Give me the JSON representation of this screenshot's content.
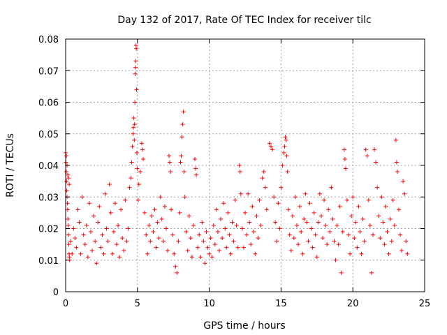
{
  "chart_data": {
    "type": "scatter",
    "title": "Day 132 of 2017, Rate Of TEC Index for receiver tilc",
    "xlabel": "GPS time / hours",
    "ylabel": "ROTI / TECUs",
    "xlim": [
      0,
      25
    ],
    "ylim": [
      0,
      0.08
    ],
    "x_ticks": [
      0,
      5,
      10,
      15,
      20,
      25
    ],
    "x_tick_labels": [
      "0",
      "5",
      "10",
      "15",
      "20",
      "25"
    ],
    "y_ticks": [
      0,
      0.01,
      0.02,
      0.03,
      0.04,
      0.05,
      0.06,
      0.07,
      0.08
    ],
    "y_tick_labels": [
      "0",
      "0.01",
      "0.02",
      "0.03",
      "0.04",
      "0.05",
      "0.06",
      "0.07",
      "0.08"
    ],
    "grid": true,
    "marker": "plus",
    "color": "#ff0000",
    "series": [
      {
        "points": [
          [
            0.0,
            0.044
          ],
          [
            0.02,
            0.041
          ],
          [
            0.04,
            0.038
          ],
          [
            0.06,
            0.035
          ],
          [
            0.08,
            0.032
          ],
          [
            0.1,
            0.03
          ],
          [
            0.12,
            0.028
          ],
          [
            0.14,
            0.026
          ],
          [
            0.16,
            0.023
          ],
          [
            0.18,
            0.021
          ],
          [
            0.2,
            0.018
          ],
          [
            0.22,
            0.015
          ],
          [
            0.24,
            0.012
          ],
          [
            0.26,
            0.011
          ],
          [
            0.28,
            0.01
          ],
          [
            0.05,
            0.043
          ],
          [
            0.1,
            0.04
          ],
          [
            0.15,
            0.037
          ],
          [
            0.2,
            0.036
          ],
          [
            0.25,
            0.034
          ],
          [
            0.35,
            0.016
          ],
          [
            0.45,
            0.012
          ],
          [
            0.55,
            0.02
          ],
          [
            0.65,
            0.017
          ],
          [
            0.75,
            0.014
          ],
          [
            0.85,
            0.026
          ],
          [
            0.95,
            0.022
          ],
          [
            1.05,
            0.012
          ],
          [
            1.15,
            0.03
          ],
          [
            1.25,
            0.018
          ],
          [
            1.35,
            0.015
          ],
          [
            1.45,
            0.021
          ],
          [
            1.55,
            0.011
          ],
          [
            1.65,
            0.028
          ],
          [
            1.75,
            0.019
          ],
          [
            1.85,
            0.013
          ],
          [
            1.95,
            0.024
          ],
          [
            2.05,
            0.016
          ],
          [
            2.15,
            0.009
          ],
          [
            2.25,
            0.022
          ],
          [
            2.35,
            0.027
          ],
          [
            2.45,
            0.014
          ],
          [
            2.55,
            0.018
          ],
          [
            2.65,
            0.012
          ],
          [
            2.75,
            0.031
          ],
          [
            2.85,
            0.02
          ],
          [
            2.95,
            0.016
          ],
          [
            3.05,
            0.034
          ],
          [
            3.15,
            0.025
          ],
          [
            3.25,
            0.012
          ],
          [
            3.35,
            0.019
          ],
          [
            3.45,
            0.028
          ],
          [
            3.55,
            0.015
          ],
          [
            3.65,
            0.021
          ],
          [
            3.75,
            0.011
          ],
          [
            3.85,
            0.026
          ],
          [
            3.95,
            0.017
          ],
          [
            4.05,
            0.013
          ],
          [
            4.15,
            0.029
          ],
          [
            4.25,
            0.016
          ],
          [
            4.35,
            0.02
          ],
          [
            4.45,
            0.033
          ],
          [
            4.55,
            0.036
          ],
          [
            4.6,
            0.041
          ],
          [
            4.65,
            0.046
          ],
          [
            4.7,
            0.05
          ],
          [
            4.72,
            0.052
          ],
          [
            4.75,
            0.055
          ],
          [
            4.78,
            0.048
          ],
          [
            4.8,
            0.053
          ],
          [
            4.82,
            0.06
          ],
          [
            4.84,
            0.069
          ],
          [
            4.86,
            0.071
          ],
          [
            4.88,
            0.073
          ],
          [
            4.9,
            0.078
          ],
          [
            4.92,
            0.077
          ],
          [
            4.94,
            0.064
          ],
          [
            4.96,
            0.044
          ],
          [
            4.98,
            0.039
          ],
          [
            5.05,
            0.029
          ],
          [
            5.1,
            0.034
          ],
          [
            5.2,
            0.038
          ],
          [
            5.3,
            0.047
          ],
          [
            5.35,
            0.045
          ],
          [
            5.4,
            0.042
          ],
          [
            5.5,
            0.025
          ],
          [
            5.6,
            0.018
          ],
          [
            5.7,
            0.012
          ],
          [
            5.8,
            0.021
          ],
          [
            5.9,
            0.016
          ],
          [
            6.0,
            0.024
          ],
          [
            6.1,
            0.019
          ],
          [
            6.2,
            0.026
          ],
          [
            6.3,
            0.014
          ],
          [
            6.4,
            0.022
          ],
          [
            6.5,
            0.017
          ],
          [
            6.6,
            0.03
          ],
          [
            6.7,
            0.023
          ],
          [
            6.8,
            0.016
          ],
          [
            6.9,
            0.027
          ],
          [
            7.0,
            0.02
          ],
          [
            7.1,
            0.013
          ],
          [
            7.2,
            0.043
          ],
          [
            7.25,
            0.041
          ],
          [
            7.3,
            0.038
          ],
          [
            7.35,
            0.026
          ],
          [
            7.45,
            0.018
          ],
          [
            7.55,
            0.012
          ],
          [
            7.65,
            0.008
          ],
          [
            7.75,
            0.006
          ],
          [
            7.85,
            0.016
          ],
          [
            7.95,
            0.025
          ],
          [
            8.0,
            0.041
          ],
          [
            8.05,
            0.043
          ],
          [
            8.1,
            0.049
          ],
          [
            8.15,
            0.053
          ],
          [
            8.2,
            0.057
          ],
          [
            8.25,
            0.038
          ],
          [
            8.3,
            0.03
          ],
          [
            8.4,
            0.019
          ],
          [
            8.5,
            0.013
          ],
          [
            8.6,
            0.024
          ],
          [
            8.7,
            0.017
          ],
          [
            8.8,
            0.011
          ],
          [
            8.9,
            0.021
          ],
          [
            9.0,
            0.042
          ],
          [
            9.05,
            0.039
          ],
          [
            9.1,
            0.037
          ],
          [
            9.2,
            0.014
          ],
          [
            9.3,
            0.018
          ],
          [
            9.4,
            0.011
          ],
          [
            9.5,
            0.022
          ],
          [
            9.6,
            0.016
          ],
          [
            9.7,
            0.009
          ],
          [
            9.8,
            0.019
          ],
          [
            9.9,
            0.014
          ],
          [
            10.0,
            0.012
          ],
          [
            10.1,
            0.017
          ],
          [
            10.2,
            0.011
          ],
          [
            10.3,
            0.021
          ],
          [
            10.4,
            0.015
          ],
          [
            10.5,
            0.026
          ],
          [
            10.6,
            0.019
          ],
          [
            10.7,
            0.013
          ],
          [
            10.8,
            0.023
          ],
          [
            10.9,
            0.017
          ],
          [
            11.0,
            0.028
          ],
          [
            11.1,
            0.02
          ],
          [
            11.2,
            0.014
          ],
          [
            11.3,
            0.025
          ],
          [
            11.4,
            0.018
          ],
          [
            11.5,
            0.012
          ],
          [
            11.6,
            0.022
          ],
          [
            11.7,
            0.016
          ],
          [
            11.8,
            0.029
          ],
          [
            11.9,
            0.021
          ],
          [
            12.0,
            0.014
          ],
          [
            12.1,
            0.04
          ],
          [
            12.15,
            0.038
          ],
          [
            12.2,
            0.031
          ],
          [
            12.3,
            0.02
          ],
          [
            12.4,
            0.014
          ],
          [
            12.5,
            0.025
          ],
          [
            12.6,
            0.018
          ],
          [
            12.7,
            0.031
          ],
          [
            12.8,
            0.022
          ],
          [
            12.9,
            0.015
          ],
          [
            13.0,
            0.027
          ],
          [
            13.1,
            0.019
          ],
          [
            13.2,
            0.012
          ],
          [
            13.3,
            0.024
          ],
          [
            13.4,
            0.017
          ],
          [
            13.5,
            0.029
          ],
          [
            13.6,
            0.021
          ],
          [
            13.7,
            0.036
          ],
          [
            13.8,
            0.038
          ],
          [
            13.9,
            0.033
          ],
          [
            14.0,
            0.026
          ],
          [
            14.2,
            0.047
          ],
          [
            14.3,
            0.046
          ],
          [
            14.4,
            0.045
          ],
          [
            14.5,
            0.03
          ],
          [
            14.6,
            0.022
          ],
          [
            14.7,
            0.016
          ],
          [
            14.8,
            0.028
          ],
          [
            14.9,
            0.02
          ],
          [
            15.0,
            0.033
          ],
          [
            15.1,
            0.04
          ],
          [
            15.2,
            0.044
          ],
          [
            15.25,
            0.046
          ],
          [
            15.3,
            0.049
          ],
          [
            15.35,
            0.048
          ],
          [
            15.4,
            0.043
          ],
          [
            15.45,
            0.038
          ],
          [
            15.5,
            0.026
          ],
          [
            15.6,
            0.018
          ],
          [
            15.7,
            0.013
          ],
          [
            15.8,
            0.024
          ],
          [
            15.9,
            0.017
          ],
          [
            16.0,
            0.03
          ],
          [
            16.1,
            0.021
          ],
          [
            16.2,
            0.015
          ],
          [
            16.3,
            0.027
          ],
          [
            16.4,
            0.019
          ],
          [
            16.5,
            0.012
          ],
          [
            16.6,
            0.023
          ],
          [
            16.7,
            0.031
          ],
          [
            16.8,
            0.022
          ],
          [
            16.9,
            0.016
          ],
          [
            17.0,
            0.028
          ],
          [
            17.1,
            0.02
          ],
          [
            17.2,
            0.014
          ],
          [
            17.3,
            0.025
          ],
          [
            17.4,
            0.018
          ],
          [
            17.5,
            0.011
          ],
          [
            17.6,
            0.022
          ],
          [
            17.7,
            0.031
          ],
          [
            17.8,
            0.024
          ],
          [
            17.9,
            0.017
          ],
          [
            18.0,
            0.029
          ],
          [
            18.1,
            0.021
          ],
          [
            18.2,
            0.015
          ],
          [
            18.3,
            0.026
          ],
          [
            18.4,
            0.019
          ],
          [
            18.5,
            0.033
          ],
          [
            18.6,
            0.023
          ],
          [
            18.7,
            0.016
          ],
          [
            18.8,
            0.01
          ],
          [
            18.9,
            0.021
          ],
          [
            19.0,
            0.015
          ],
          [
            19.1,
            0.027
          ],
          [
            19.2,
            0.006
          ],
          [
            19.3,
            0.019
          ],
          [
            19.4,
            0.045
          ],
          [
            19.45,
            0.042
          ],
          [
            19.5,
            0.039
          ],
          [
            19.6,
            0.029
          ],
          [
            19.7,
            0.018
          ],
          [
            19.8,
            0.012
          ],
          [
            19.9,
            0.024
          ],
          [
            20.0,
            0.03
          ],
          [
            20.1,
            0.017
          ],
          [
            20.2,
            0.022
          ],
          [
            20.3,
            0.014
          ],
          [
            20.4,
            0.027
          ],
          [
            20.5,
            0.019
          ],
          [
            20.6,
            0.012
          ],
          [
            20.7,
            0.023
          ],
          [
            20.8,
            0.016
          ],
          [
            20.9,
            0.045
          ],
          [
            21.0,
            0.043
          ],
          [
            21.1,
            0.029
          ],
          [
            21.2,
            0.021
          ],
          [
            21.3,
            0.006
          ],
          [
            21.4,
            0.018
          ],
          [
            21.5,
            0.045
          ],
          [
            21.6,
            0.041
          ],
          [
            21.7,
            0.033
          ],
          [
            21.8,
            0.024
          ],
          [
            21.9,
            0.017
          ],
          [
            22.0,
            0.03
          ],
          [
            22.1,
            0.022
          ],
          [
            22.2,
            0.015
          ],
          [
            22.3,
            0.027
          ],
          [
            22.4,
            0.019
          ],
          [
            22.5,
            0.012
          ],
          [
            22.6,
            0.023
          ],
          [
            22.7,
            0.016
          ],
          [
            22.8,
            0.029
          ],
          [
            22.9,
            0.021
          ],
          [
            23.0,
            0.048
          ],
          [
            23.05,
            0.041
          ],
          [
            23.1,
            0.038
          ],
          [
            23.2,
            0.026
          ],
          [
            23.3,
            0.018
          ],
          [
            23.4,
            0.013
          ],
          [
            23.5,
            0.035
          ],
          [
            23.6,
            0.031
          ],
          [
            23.7,
            0.016
          ],
          [
            23.8,
            0.012
          ]
        ]
      }
    ]
  }
}
